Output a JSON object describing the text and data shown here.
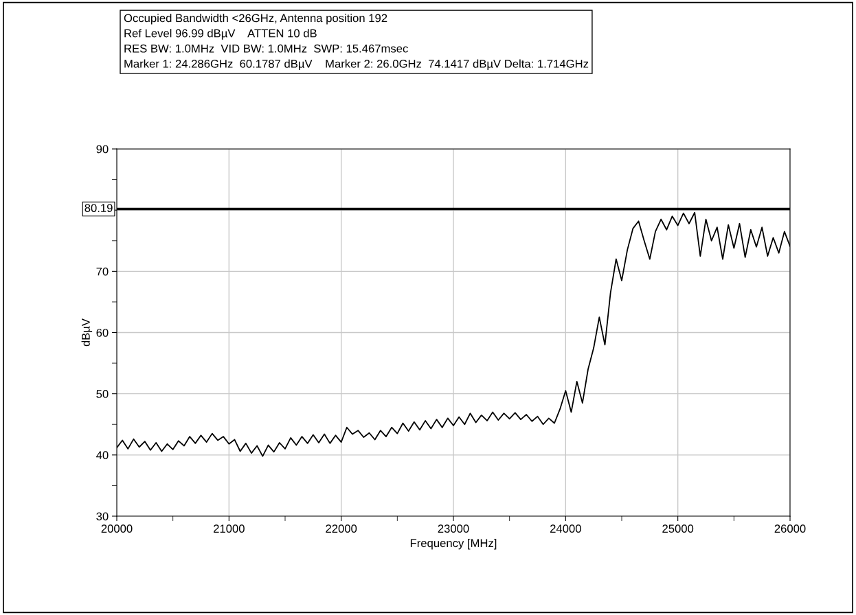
{
  "chart_data": {
    "type": "line",
    "title": "Occupied Bandwidth <26GHz, Antenna position 192\nRef Level 96.99 dBµV    ATTEN 10 dB\nRES BW: 1.0MHz  VID BW: 1.0MHz  SWP: 15.467msec\nMarker 1: 24.286GHz  60.1787 dBµV    Marker 2: 26.0GHz  74.1417 dBµV Delta: 1.714GHz",
    "xlabel": "Frequency [MHz]",
    "ylabel": "dBµV",
    "x": [
      20000,
      20050,
      20100,
      20150,
      20200,
      20250,
      20300,
      20350,
      20400,
      20450,
      20500,
      20550,
      20600,
      20650,
      20700,
      20750,
      20800,
      20850,
      20900,
      20950,
      21000,
      21050,
      21100,
      21150,
      21200,
      21250,
      21300,
      21350,
      21400,
      21450,
      21500,
      21550,
      21600,
      21650,
      21700,
      21750,
      21800,
      21850,
      21900,
      21950,
      22000,
      22050,
      22100,
      22150,
      22200,
      22250,
      22300,
      22350,
      22400,
      22450,
      22500,
      22550,
      22600,
      22650,
      22700,
      22750,
      22800,
      22850,
      22900,
      22950,
      23000,
      23050,
      23100,
      23150,
      23200,
      23250,
      23300,
      23350,
      23400,
      23450,
      23500,
      23550,
      23600,
      23650,
      23700,
      23750,
      23800,
      23850,
      23900,
      23950,
      24000,
      24050,
      24100,
      24150,
      24200,
      24250,
      24300,
      24350,
      24400,
      24450,
      24500,
      24550,
      24600,
      24650,
      24700,
      24750,
      24800,
      24850,
      24900,
      24950,
      25000,
      25050,
      25100,
      25150,
      25200,
      25250,
      25300,
      25350,
      25400,
      25450,
      25500,
      25550,
      25600,
      25650,
      25700,
      25750,
      25800,
      25850,
      25900,
      25950,
      26000
    ],
    "series": [
      {
        "color": "#000000",
        "values": [
          41.2,
          42.4,
          41.0,
          42.6,
          41.3,
          42.2,
          40.8,
          42.0,
          40.6,
          41.8,
          40.9,
          42.3,
          41.5,
          43.0,
          41.9,
          43.2,
          42.1,
          43.5,
          42.4,
          43.0,
          41.8,
          42.5,
          40.6,
          41.9,
          40.3,
          41.5,
          39.8,
          41.6,
          40.5,
          42.0,
          41.0,
          42.8,
          41.6,
          43.0,
          41.9,
          43.3,
          42.0,
          43.4,
          41.9,
          43.2,
          42.1,
          44.5,
          43.4,
          44.0,
          42.9,
          43.6,
          42.5,
          44.0,
          43.0,
          44.5,
          43.5,
          45.2,
          43.9,
          45.4,
          44.1,
          45.6,
          44.3,
          45.8,
          44.5,
          46.0,
          44.8,
          46.2,
          45.0,
          46.8,
          45.3,
          46.5,
          45.6,
          47.0,
          45.7,
          46.8,
          45.9,
          46.9,
          45.8,
          46.6,
          45.5,
          46.3,
          45.0,
          46.0,
          45.2,
          47.5,
          50.5,
          47.0,
          52.0,
          48.5,
          54.0,
          57.5,
          62.5,
          58.0,
          66.5,
          72.0,
          68.5,
          73.5,
          77.0,
          78.2,
          75.0,
          72.0,
          76.5,
          78.5,
          76.8,
          79.0,
          77.5,
          79.5,
          77.8,
          79.6,
          72.5,
          78.5,
          75.0,
          77.2,
          72.0,
          77.6,
          73.8,
          77.8,
          72.3,
          76.8,
          74.0,
          77.2,
          72.5,
          75.5,
          73.0,
          76.5,
          74.1
        ]
      }
    ],
    "xlim": [
      20000,
      26000
    ],
    "xticks": [
      20000,
      21000,
      22000,
      23000,
      24000,
      25000,
      26000
    ],
    "ylim": [
      30,
      90
    ],
    "yticks": [
      30,
      40,
      50,
      60,
      70,
      {
        "value": 80,
        "label": null
      },
      90
    ],
    "ref_lines": [
      {
        "axis": "y",
        "value": 80.19,
        "label": "80.19",
        "color": "#000000"
      }
    ],
    "grid": true,
    "marker": "none",
    "line_style": "solid"
  }
}
